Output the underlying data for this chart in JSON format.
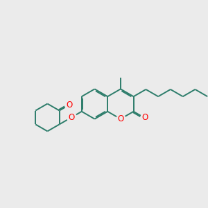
{
  "bg_color": "#ebebeb",
  "bond_color": "#2d7d6b",
  "atom_color": "#ff0000",
  "bond_width": 1.4,
  "font_size": 8.5,
  "fig_width": 3.0,
  "fig_height": 3.0,
  "dpi": 100,
  "xlim": [
    0,
    10
  ],
  "ylim": [
    0,
    10
  ]
}
